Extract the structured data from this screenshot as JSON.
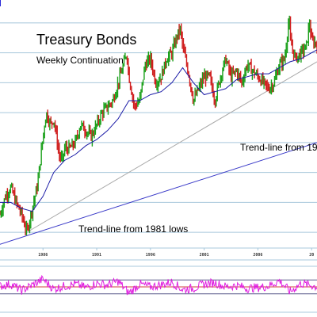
{
  "chart_data": {
    "type": "line",
    "title": "Treasury Bonds",
    "subtitle": "Weekly Continuation",
    "x_tick_labels": [
      "1986",
      "1991",
      "1996",
      "2001",
      "2006",
      "20"
    ],
    "x_range": [
      1982.0,
      2011.5
    ],
    "y_range": [
      55,
      135
    ],
    "grid": "horizontal lines",
    "annotations": [
      {
        "text": "Trend-line from 1981 lows"
      },
      {
        "text": "Trend-line from 19"
      }
    ],
    "series": [
      {
        "role": "price",
        "style": "ohlc bars (green/red)",
        "x": [
          1982.0,
          1982.5,
          1983.0,
          1983.5,
          1984.0,
          1984.5,
          1985.0,
          1985.5,
          1986.0,
          1986.3,
          1986.7,
          1987.0,
          1987.5,
          1987.8,
          1988.0,
          1988.5,
          1989.0,
          1989.5,
          1990.0,
          1990.5,
          1991.0,
          1991.5,
          1992.0,
          1992.5,
          1993.0,
          1993.5,
          1993.8,
          1994.0,
          1994.5,
          1995.0,
          1995.5,
          1996.0,
          1996.5,
          1997.0,
          1997.5,
          1998.0,
          1998.5,
          1998.8,
          1999.0,
          1999.5,
          2000.0,
          2000.5,
          2001.0,
          2001.5,
          2002.0,
          2002.5,
          2003.0,
          2003.5,
          2004.0,
          2004.5,
          2005.0,
          2005.5,
          2006.0,
          2006.5,
          2007.0,
          2007.5,
          2008.0,
          2008.5,
          2008.9,
          2009.0,
          2009.5,
          2010.0,
          2010.5,
          2010.8,
          2011.0,
          2011.5
        ],
        "values": [
          66,
          72,
          75,
          70,
          66,
          60,
          68,
          76,
          92,
          100,
          96,
          98,
          86,
          84,
          88,
          88,
          90,
          96,
          94,
          92,
          96,
          100,
          102,
          104,
          110,
          116,
          120,
          112,
          102,
          104,
          116,
          118,
          110,
          112,
          118,
          120,
          126,
          128,
          122,
          114,
          104,
          108,
          112,
          112,
          104,
          112,
          118,
          112,
          114,
          110,
          116,
          114,
          112,
          110,
          108,
          110,
          116,
          118,
          132,
          124,
          118,
          120,
          122,
          130,
          124,
          123
        ]
      },
      {
        "role": "moving-average",
        "color": "#1a1aa6",
        "x": [
          1982.0,
          1983.0,
          1984.0,
          1985.0,
          1986.0,
          1987.0,
          1988.0,
          1989.0,
          1990.0,
          1991.0,
          1992.0,
          1993.0,
          1994.0,
          1995.0,
          1996.0,
          1997.0,
          1998.0,
          1999.0,
          2000.0,
          2001.0,
          2002.0,
          2003.0,
          2004.0,
          2005.0,
          2006.0,
          2007.0,
          2008.0,
          2009.0,
          2010.0,
          2011.0,
          2011.5
        ],
        "values": [
          70,
          70,
          68,
          67,
          72,
          80,
          84,
          86,
          89,
          91,
          94,
          98,
          104,
          104,
          106,
          107,
          110,
          115,
          110,
          106,
          107,
          108,
          111,
          112,
          113,
          113,
          115,
          117,
          118,
          120,
          121
        ]
      },
      {
        "role": "trend-line",
        "label": "Trend-line from 1981 lows",
        "color": "#3a3ac8",
        "x": [
          1982.0,
          2011.5
        ],
        "values": [
          56,
          90
        ]
      },
      {
        "role": "trend-line",
        "label": "Trend-line from 19",
        "color": "#a8a8a8",
        "x": [
          1984.5,
          2011.5
        ],
        "values": [
          60,
          117
        ]
      }
    ],
    "oscillator": {
      "style": "magenta line with three horizontal levels",
      "color": "#e01ee0",
      "y_range": [
        0,
        100
      ],
      "levels": [
        30,
        50,
        70
      ],
      "x": [
        1982.0,
        1983.0,
        1984.0,
        1985.0,
        1986.0,
        1987.0,
        1988.0,
        1989.0,
        1990.0,
        1991.0,
        1992.0,
        1993.0,
        1994.0,
        1995.0,
        1996.0,
        1997.0,
        1998.0,
        1999.0,
        2000.0,
        2001.0,
        2002.0,
        2003.0,
        2004.0,
        2005.0,
        2006.0,
        2007.0,
        2008.0,
        2009.0,
        2010.0,
        2011.0,
        2011.5
      ],
      "values": [
        52,
        58,
        40,
        55,
        72,
        44,
        52,
        58,
        48,
        60,
        55,
        66,
        32,
        58,
        50,
        56,
        64,
        42,
        46,
        58,
        62,
        50,
        54,
        46,
        48,
        52,
        68,
        36,
        60,
        54,
        50
      ]
    }
  }
}
